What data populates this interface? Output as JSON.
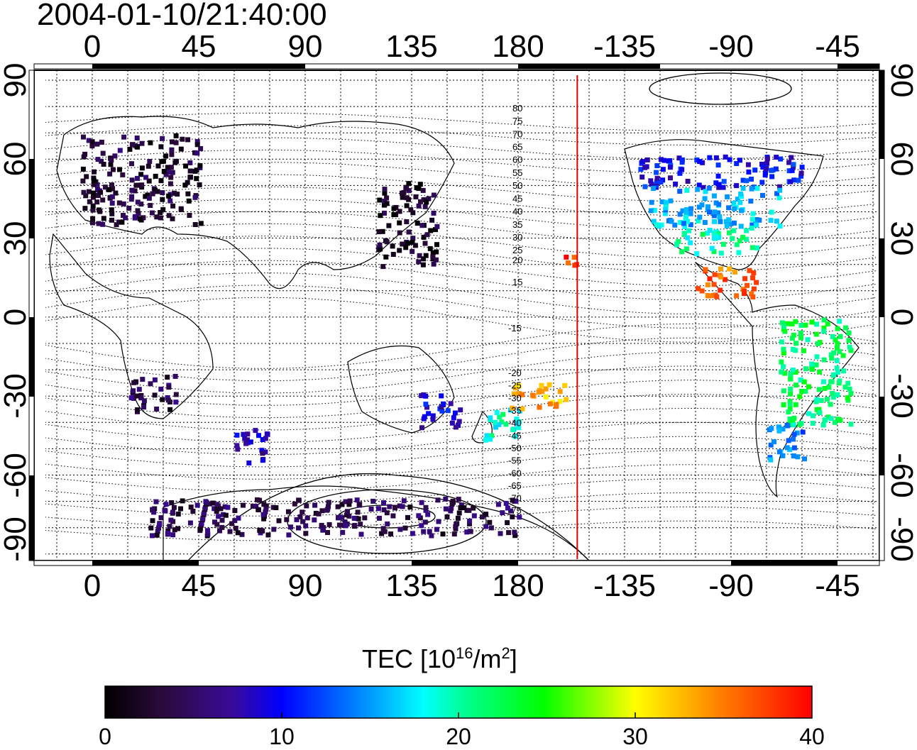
{
  "timestamp": "2004-01-10/21:40:00",
  "longitude_ticks": [
    "0",
    "45",
    "90",
    "135",
    "180",
    "-135",
    "-90",
    "-45"
  ],
  "latitude_ticks": [
    "90",
    "60",
    "30",
    "0",
    "-30",
    "-60",
    "-90"
  ],
  "contour_labels": [
    "80",
    "75",
    "70",
    "65",
    "60",
    "55",
    "50",
    "45",
    "40",
    "35",
    "30",
    "25",
    "20",
    "15",
    "-15",
    "-20",
    "-25",
    "-30",
    "-35",
    "-40",
    "-45",
    "-50",
    "-55",
    "-60",
    "-65",
    "-70",
    "-75"
  ],
  "colorbar": {
    "title_prefix": "TEC  [10",
    "title_exp": "16",
    "title_mid": "/m",
    "title_exp2": "2",
    "title_suffix": "]",
    "min": 0,
    "max": 40,
    "ticks": [
      "0",
      "10",
      "20",
      "30",
      "40"
    ]
  },
  "terminator_longitude": -155,
  "colors": {
    "terminator": "#e00000",
    "grid": "#000000"
  },
  "tec_regions": [
    {
      "name": "europe",
      "lon": [
        -5,
        45
      ],
      "lat": [
        36,
        70
      ],
      "tec": 3
    },
    {
      "name": "east-asia",
      "lon": [
        120,
        145
      ],
      "lat": [
        20,
        52
      ],
      "tec": 2
    },
    {
      "name": "north-america-north",
      "lon": [
        -130,
        -60
      ],
      "lat": [
        50,
        62
      ],
      "tec": 10
    },
    {
      "name": "north-america-mid",
      "lon": [
        -125,
        -70
      ],
      "lat": [
        35,
        50
      ],
      "tec": 16
    },
    {
      "name": "north-america-south",
      "lon": [
        -115,
        -80
      ],
      "lat": [
        25,
        35
      ],
      "tec": 20
    },
    {
      "name": "central-america",
      "lon": [
        -105,
        -80
      ],
      "lat": [
        8,
        20
      ],
      "tec": 36
    },
    {
      "name": "south-america",
      "lon": [
        -70,
        -40
      ],
      "lat": [
        -40,
        0
      ],
      "tec": 22
    },
    {
      "name": "patagonia",
      "lon": [
        -75,
        -60
      ],
      "lat": [
        -55,
        -40
      ],
      "tec": 14
    },
    {
      "name": "australia-se",
      "lon": [
        138,
        155
      ],
      "lat": [
        -42,
        -28
      ],
      "tec": 9
    },
    {
      "name": "new-zealand",
      "lon": [
        165,
        180
      ],
      "lat": [
        -48,
        -34
      ],
      "tec": 19
    },
    {
      "name": "hawaii",
      "lon": [
        -162,
        -155
      ],
      "lat": [
        18,
        24
      ],
      "tec": 38
    },
    {
      "name": "pacific-south",
      "lon": [
        175,
        200
      ],
      "lat": [
        -34,
        -24
      ],
      "tec": 33
    },
    {
      "name": "southern-africa",
      "lon": [
        15,
        35
      ],
      "lat": [
        -35,
        -20
      ],
      "tec": 4
    },
    {
      "name": "kerguelen",
      "lon": [
        60,
        75
      ],
      "lat": [
        -55,
        -42
      ],
      "tec": 8
    },
    {
      "name": "antarctica",
      "lon": [
        20,
        180
      ],
      "lat": [
        -82,
        -68
      ],
      "tec": 4
    }
  ]
}
